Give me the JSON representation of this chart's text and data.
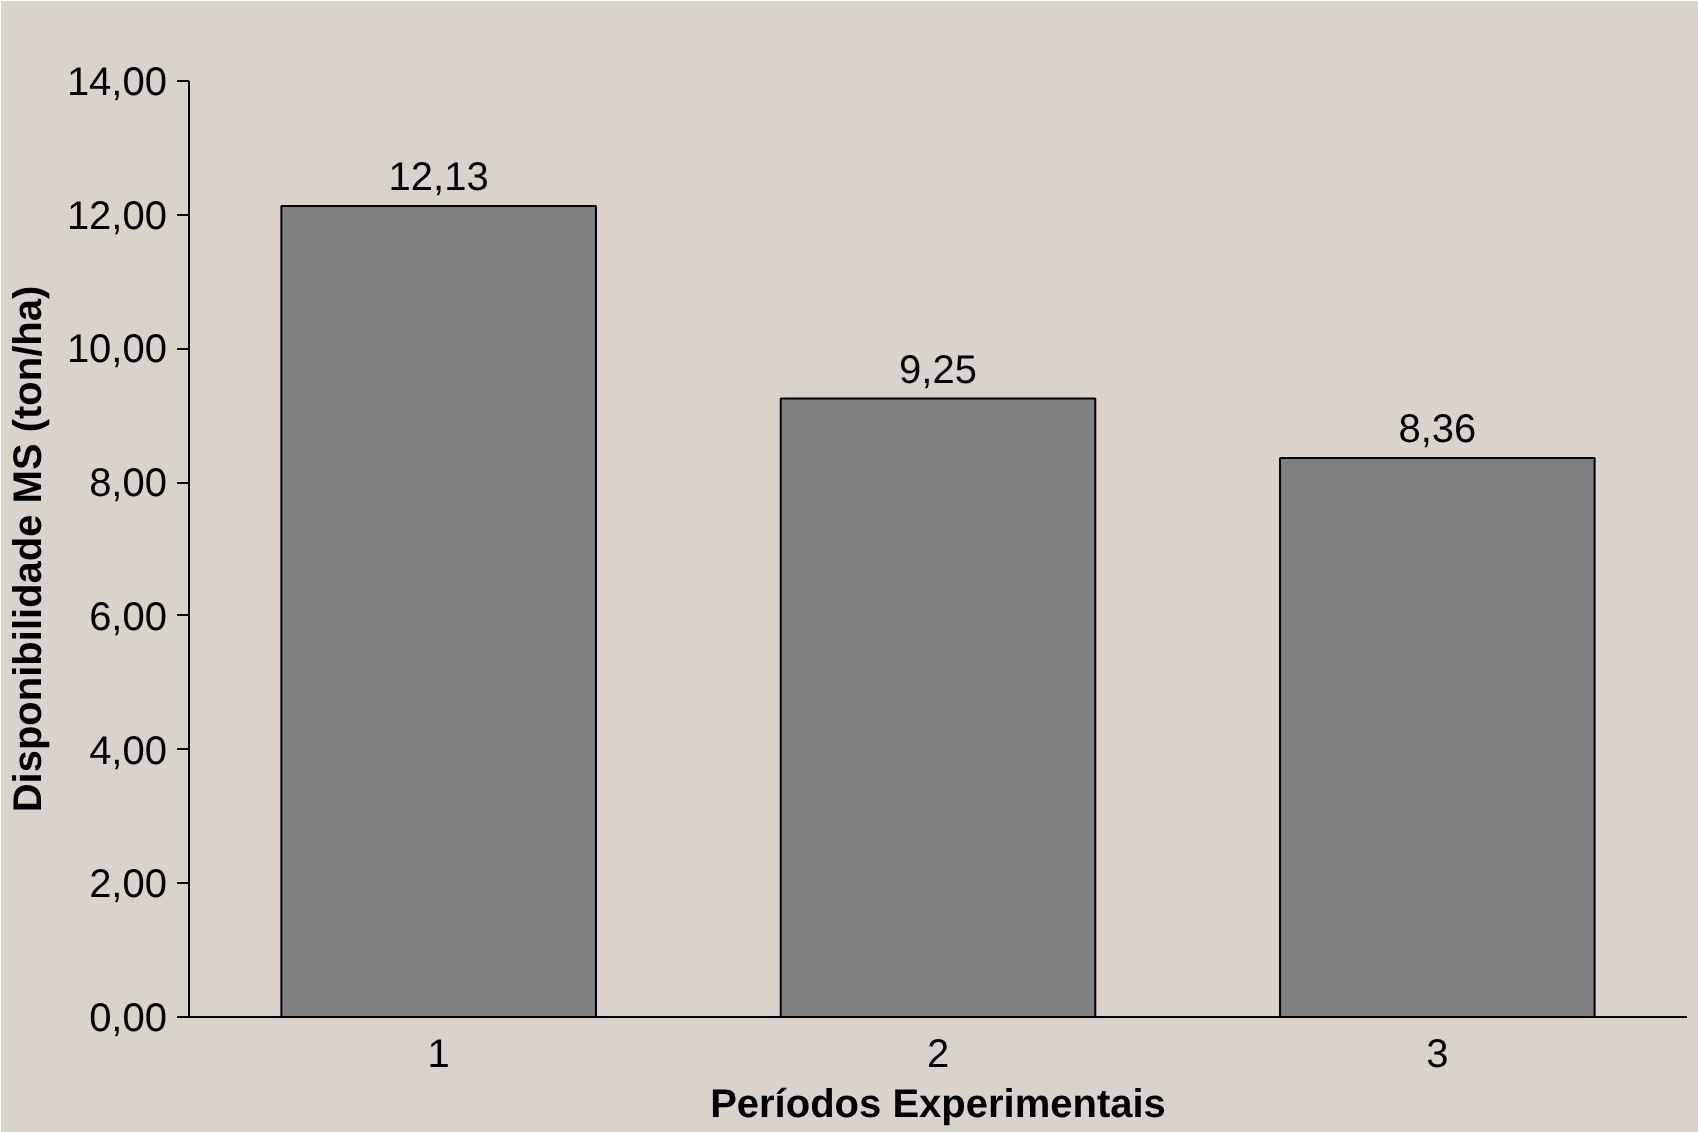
{
  "chart_data": {
    "type": "bar",
    "xlabel": "Períodos Experimentais",
    "ylabel": "Disponibilidade MS (ton/ha)",
    "categories": [
      "1",
      "2",
      "3"
    ],
    "values": [
      12.13,
      9.25,
      8.36
    ],
    "color": "#808080",
    "value_labels": [
      "12,13",
      "9,25",
      "8,36"
    ],
    "ylim": [
      0,
      14
    ],
    "yticks": [
      {
        "value": 0,
        "label": "0,00"
      },
      {
        "value": 2,
        "label": "2,00"
      },
      {
        "value": 4,
        "label": "4,00"
      },
      {
        "value": 6,
        "label": "6,00"
      },
      {
        "value": 8,
        "label": "8,00"
      },
      {
        "value": 10,
        "label": "10,00"
      },
      {
        "value": 12,
        "label": "12,00"
      },
      {
        "value": 14,
        "label": "14,00"
      }
    ],
    "grid": false
  }
}
